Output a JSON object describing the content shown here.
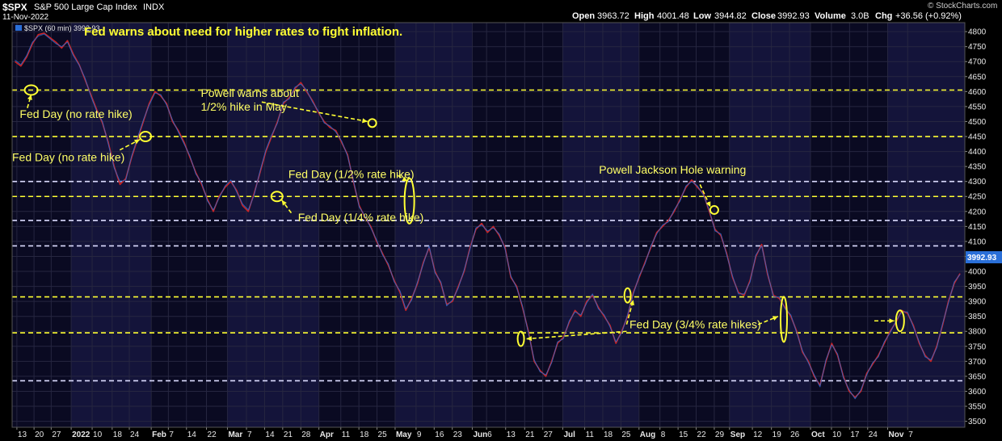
{
  "header": {
    "symbol": "$SPX",
    "name": "S&P 500 Large Cap Index",
    "exchange": "INDX",
    "date": "11-Nov-2022",
    "open_label": "Open",
    "open": "3963.72",
    "high_label": "High",
    "high": "4001.48",
    "low_label": "Low",
    "low": "3944.82",
    "close_label": "Close",
    "close": "3992.93",
    "volume_label": "Volume",
    "volume": "3.0B",
    "chg_label": "Chg",
    "chg": "+36.56 (+0.92%)",
    "credit": "© StockCharts.com",
    "legend": "$SPX (60 min) 3992.93"
  },
  "chart_data": {
    "type": "line",
    "title": "Fed warns about need for higher rates to fight inflation.",
    "series": [
      {
        "name": "$SPX (60 min)",
        "color": "#cc2222",
        "values": [
          4700,
          4685,
          4715,
          4760,
          4790,
          4795,
          4780,
          4765,
          4745,
          4770,
          4725,
          4690,
          4640,
          4590,
          4540,
          4495,
          4430,
          4350,
          4290,
          4310,
          4380,
          4440,
          4500,
          4560,
          4600,
          4585,
          4560,
          4500,
          4470,
          4430,
          4380,
          4330,
          4290,
          4240,
          4200,
          4250,
          4280,
          4300,
          4270,
          4220,
          4200,
          4260,
          4330,
          4400,
          4450,
          4500,
          4560,
          4580,
          4610,
          4630,
          4600,
          4570,
          4530,
          4500,
          4480,
          4470,
          4430,
          4390,
          4300,
          4220,
          4180,
          4150,
          4100,
          4060,
          4020,
          3970,
          3930,
          3870,
          3910,
          3960,
          4030,
          4080,
          4000,
          3960,
          3890,
          3900,
          3950,
          4000,
          4080,
          4140,
          4160,
          4130,
          4150,
          4120,
          4080,
          3980,
          3950,
          3880,
          3800,
          3700,
          3670,
          3650,
          3700,
          3760,
          3780,
          3830,
          3870,
          3850,
          3900,
          3920,
          3880,
          3850,
          3820,
          3760,
          3800,
          3850,
          3930,
          3980,
          4030,
          4080,
          4130,
          4150,
          4170,
          4200,
          4240,
          4280,
          4305,
          4280,
          4260,
          4200,
          4140,
          4120,
          4060,
          3980,
          3930,
          3920,
          3970,
          4050,
          4090,
          3990,
          3920,
          3910,
          3880,
          3850,
          3800,
          3730,
          3700,
          3650,
          3620,
          3700,
          3760,
          3720,
          3650,
          3600,
          3580,
          3600,
          3660,
          3690,
          3720,
          3760,
          3800,
          3830,
          3870,
          3860,
          3820,
          3760,
          3720,
          3700,
          3750,
          3820,
          3900,
          3960,
          3993
        ]
      },
      {
        "name": "",
        "color": "#2a6fd8",
        "values": [
          4705,
          4690,
          4720,
          4765,
          4785,
          4792,
          4776,
          4760,
          4750,
          4765,
          4720,
          4688,
          4645,
          4585,
          4535,
          4500,
          4425,
          4345,
          4300,
          4305,
          4385,
          4445,
          4505,
          4555,
          4595,
          4590,
          4555,
          4505,
          4465,
          4425,
          4385,
          4325,
          4295,
          4235,
          4205,
          4245,
          4285,
          4305,
          4265,
          4225,
          4205,
          4255,
          4335,
          4405,
          4455,
          4495,
          4565,
          4575,
          4615,
          4625,
          4605,
          4565,
          4535,
          4495,
          4485,
          4465,
          4435,
          4385,
          4305,
          4215,
          4185,
          4145,
          4105,
          4055,
          4025,
          3965,
          3935,
          3875,
          3905,
          3965,
          4025,
          4085,
          3995,
          3965,
          3885,
          3905,
          3945,
          4005,
          4075,
          4145,
          4155,
          4135,
          4145,
          4125,
          4075,
          3985,
          3945,
          3885,
          3795,
          3705,
          3665,
          3655,
          3695,
          3765,
          3775,
          3835,
          3865,
          3855,
          3895,
          3925,
          3875,
          3855,
          3815,
          3765,
          3795,
          3855,
          3925,
          3985,
          4025,
          4085,
          4125,
          4155,
          4165,
          4205,
          4235,
          4285,
          4300,
          4285,
          4255,
          4205,
          4135,
          4125,
          4055,
          3985,
          3925,
          3925,
          3965,
          4055,
          4085,
          3995,
          3915,
          3915,
          3875,
          3855,
          3795,
          3735,
          3695,
          3655,
          3615,
          3705,
          3755,
          3725,
          3645,
          3605,
          3575,
          3605,
          3655,
          3695,
          3715,
          3765,
          3795,
          3835,
          3865,
          3865,
          3815,
          3765,
          3715,
          3705,
          3745,
          3825,
          3895,
          3965,
          3990
        ]
      }
    ],
    "ylim": [
      3480,
      4830
    ],
    "yticks": [
      "3500",
      "3550",
      "3600",
      "3650",
      "3700",
      "3750",
      "3800",
      "3850",
      "3900",
      "3950",
      "4000",
      "4050",
      "4100",
      "4150",
      "4200",
      "4250",
      "4300",
      "4350",
      "4400",
      "4450",
      "4500",
      "4550",
      "4600",
      "4650",
      "4700",
      "4750",
      "4800"
    ],
    "x_ticks": [
      {
        "label": "13",
        "pos": 0.005
      },
      {
        "label": "20",
        "pos": 0.023
      },
      {
        "label": "27",
        "pos": 0.041
      },
      {
        "label": "2022",
        "pos": 0.062
      },
      {
        "label": "10",
        "pos": 0.084
      },
      {
        "label": "18",
        "pos": 0.105
      },
      {
        "label": "24",
        "pos": 0.123
      },
      {
        "label": "Feb",
        "pos": 0.146
      },
      {
        "label": "7",
        "pos": 0.164
      },
      {
        "label": "14",
        "pos": 0.183
      },
      {
        "label": "22",
        "pos": 0.204
      },
      {
        "label": "Mar",
        "pos": 0.226
      },
      {
        "label": "7",
        "pos": 0.246
      },
      {
        "label": "14",
        "pos": 0.265
      },
      {
        "label": "21",
        "pos": 0.284
      },
      {
        "label": "28",
        "pos": 0.303
      },
      {
        "label": "Apr",
        "pos": 0.322
      },
      {
        "label": "11",
        "pos": 0.345
      },
      {
        "label": "18",
        "pos": 0.364
      },
      {
        "label": "25",
        "pos": 0.383
      },
      {
        "label": "May",
        "pos": 0.402
      },
      {
        "label": "9",
        "pos": 0.424
      },
      {
        "label": "16",
        "pos": 0.443
      },
      {
        "label": "23",
        "pos": 0.462
      },
      {
        "label": "Jun",
        "pos": 0.483
      },
      {
        "label": "6",
        "pos": 0.498
      },
      {
        "label": "13",
        "pos": 0.518
      },
      {
        "label": "21",
        "pos": 0.538
      },
      {
        "label": "27",
        "pos": 0.557
      },
      {
        "label": "Jul",
        "pos": 0.578
      },
      {
        "label": "11",
        "pos": 0.601
      },
      {
        "label": "18",
        "pos": 0.62
      },
      {
        "label": "25",
        "pos": 0.639
      },
      {
        "label": "Aug",
        "pos": 0.658
      },
      {
        "label": "8",
        "pos": 0.68
      },
      {
        "label": "15",
        "pos": 0.699
      },
      {
        "label": "22",
        "pos": 0.718
      },
      {
        "label": "29",
        "pos": 0.737
      },
      {
        "label": "Sep",
        "pos": 0.753
      },
      {
        "label": "12",
        "pos": 0.777
      },
      {
        "label": "19",
        "pos": 0.797
      },
      {
        "label": "26",
        "pos": 0.816
      },
      {
        "label": "Oct",
        "pos": 0.838
      },
      {
        "label": "10",
        "pos": 0.86
      },
      {
        "label": "17",
        "pos": 0.879
      },
      {
        "label": "24",
        "pos": 0.898
      },
      {
        "label": "Nov",
        "pos": 0.919
      },
      {
        "label": "7",
        "pos": 0.94
      }
    ],
    "month_shading": true,
    "grid": true,
    "horizontal_levels": [
      {
        "value": 4605,
        "color": "#ffff33"
      },
      {
        "value": 4450,
        "color": "#ffff33"
      },
      {
        "value": 4300,
        "color": "#ddddff"
      },
      {
        "value": 4250,
        "color": "#ffff33"
      },
      {
        "value": 4170,
        "color": "#ddddff"
      },
      {
        "value": 4085,
        "color": "#ddddff"
      },
      {
        "value": 3915,
        "color": "#ffff33"
      },
      {
        "value": 3795,
        "color": "#ffff33"
      },
      {
        "value": 3635,
        "color": "#ddddff"
      }
    ],
    "last_value_label": "3992.93",
    "annotations": [
      {
        "text": "Fed Day (no rate hike)",
        "x": 0.008,
        "y": 4525
      },
      {
        "text": "Fed Day (no rate hike)",
        "x": 0.0,
        "y": 4382
      },
      {
        "text": "Powell warns about",
        "x": 0.198,
        "y": 4595
      },
      {
        "text": "1/2% hike in May",
        "x": 0.198,
        "y": 4550
      },
      {
        "text": "Fed Day (1/2% rate hike)",
        "x": 0.29,
        "y": 4325
      },
      {
        "text": "Fed Day (1/4% rate hike)",
        "x": 0.3,
        "y": 4180
      },
      {
        "text": "Powell Jackson Hole warning",
        "x": 0.616,
        "y": 4340
      },
      {
        "text": "Fed Day (3/4% rate hikes)",
        "x": 0.648,
        "y": 3823
      }
    ],
    "markers": [
      {
        "x": 0.02,
        "y": 4605,
        "rx": 8,
        "ry": 6
      },
      {
        "x": 0.14,
        "y": 4450,
        "rx": 7,
        "ry": 6
      },
      {
        "x": 0.278,
        "y": 4250,
        "rx": 7,
        "ry": 6
      },
      {
        "x": 0.378,
        "y": 4495,
        "rx": 5,
        "ry": 5
      },
      {
        "x": 0.417,
        "y": 4235,
        "rx": 6,
        "ry": 28
      },
      {
        "x": 0.737,
        "y": 4205,
        "rx": 5,
        "ry": 5
      },
      {
        "x": 0.534,
        "y": 3775,
        "rx": 4,
        "ry": 9
      },
      {
        "x": 0.646,
        "y": 3920,
        "rx": 4,
        "ry": 9
      },
      {
        "x": 0.81,
        "y": 3840,
        "rx": 4,
        "ry": 28
      },
      {
        "x": 0.932,
        "y": 3835,
        "rx": 5,
        "ry": 13
      }
    ],
    "arrows": [
      {
        "x1": 0.016,
        "y1": 4545,
        "x2": 0.02,
        "y2": 4590
      },
      {
        "x1": 0.113,
        "y1": 4405,
        "x2": 0.134,
        "y2": 4440
      },
      {
        "x1": 0.262,
        "y1": 4565,
        "x2": 0.373,
        "y2": 4500
      },
      {
        "x1": 0.405,
        "y1": 4320,
        "x2": 0.415,
        "y2": 4300
      },
      {
        "x1": 0.293,
        "y1": 4195,
        "x2": 0.283,
        "y2": 4238
      },
      {
        "x1": 0.722,
        "y1": 4290,
        "x2": 0.733,
        "y2": 4215
      },
      {
        "x1": 0.645,
        "y1": 3800,
        "x2": 0.54,
        "y2": 3775
      },
      {
        "x1": 0.645,
        "y1": 3823,
        "x2": 0.652,
        "y2": 3905
      },
      {
        "x1": 0.783,
        "y1": 3823,
        "x2": 0.804,
        "y2": 3850
      },
      {
        "x1": 0.905,
        "y1": 3835,
        "x2": 0.926,
        "y2": 3835
      }
    ],
    "annotation_color": "#ffff33"
  }
}
